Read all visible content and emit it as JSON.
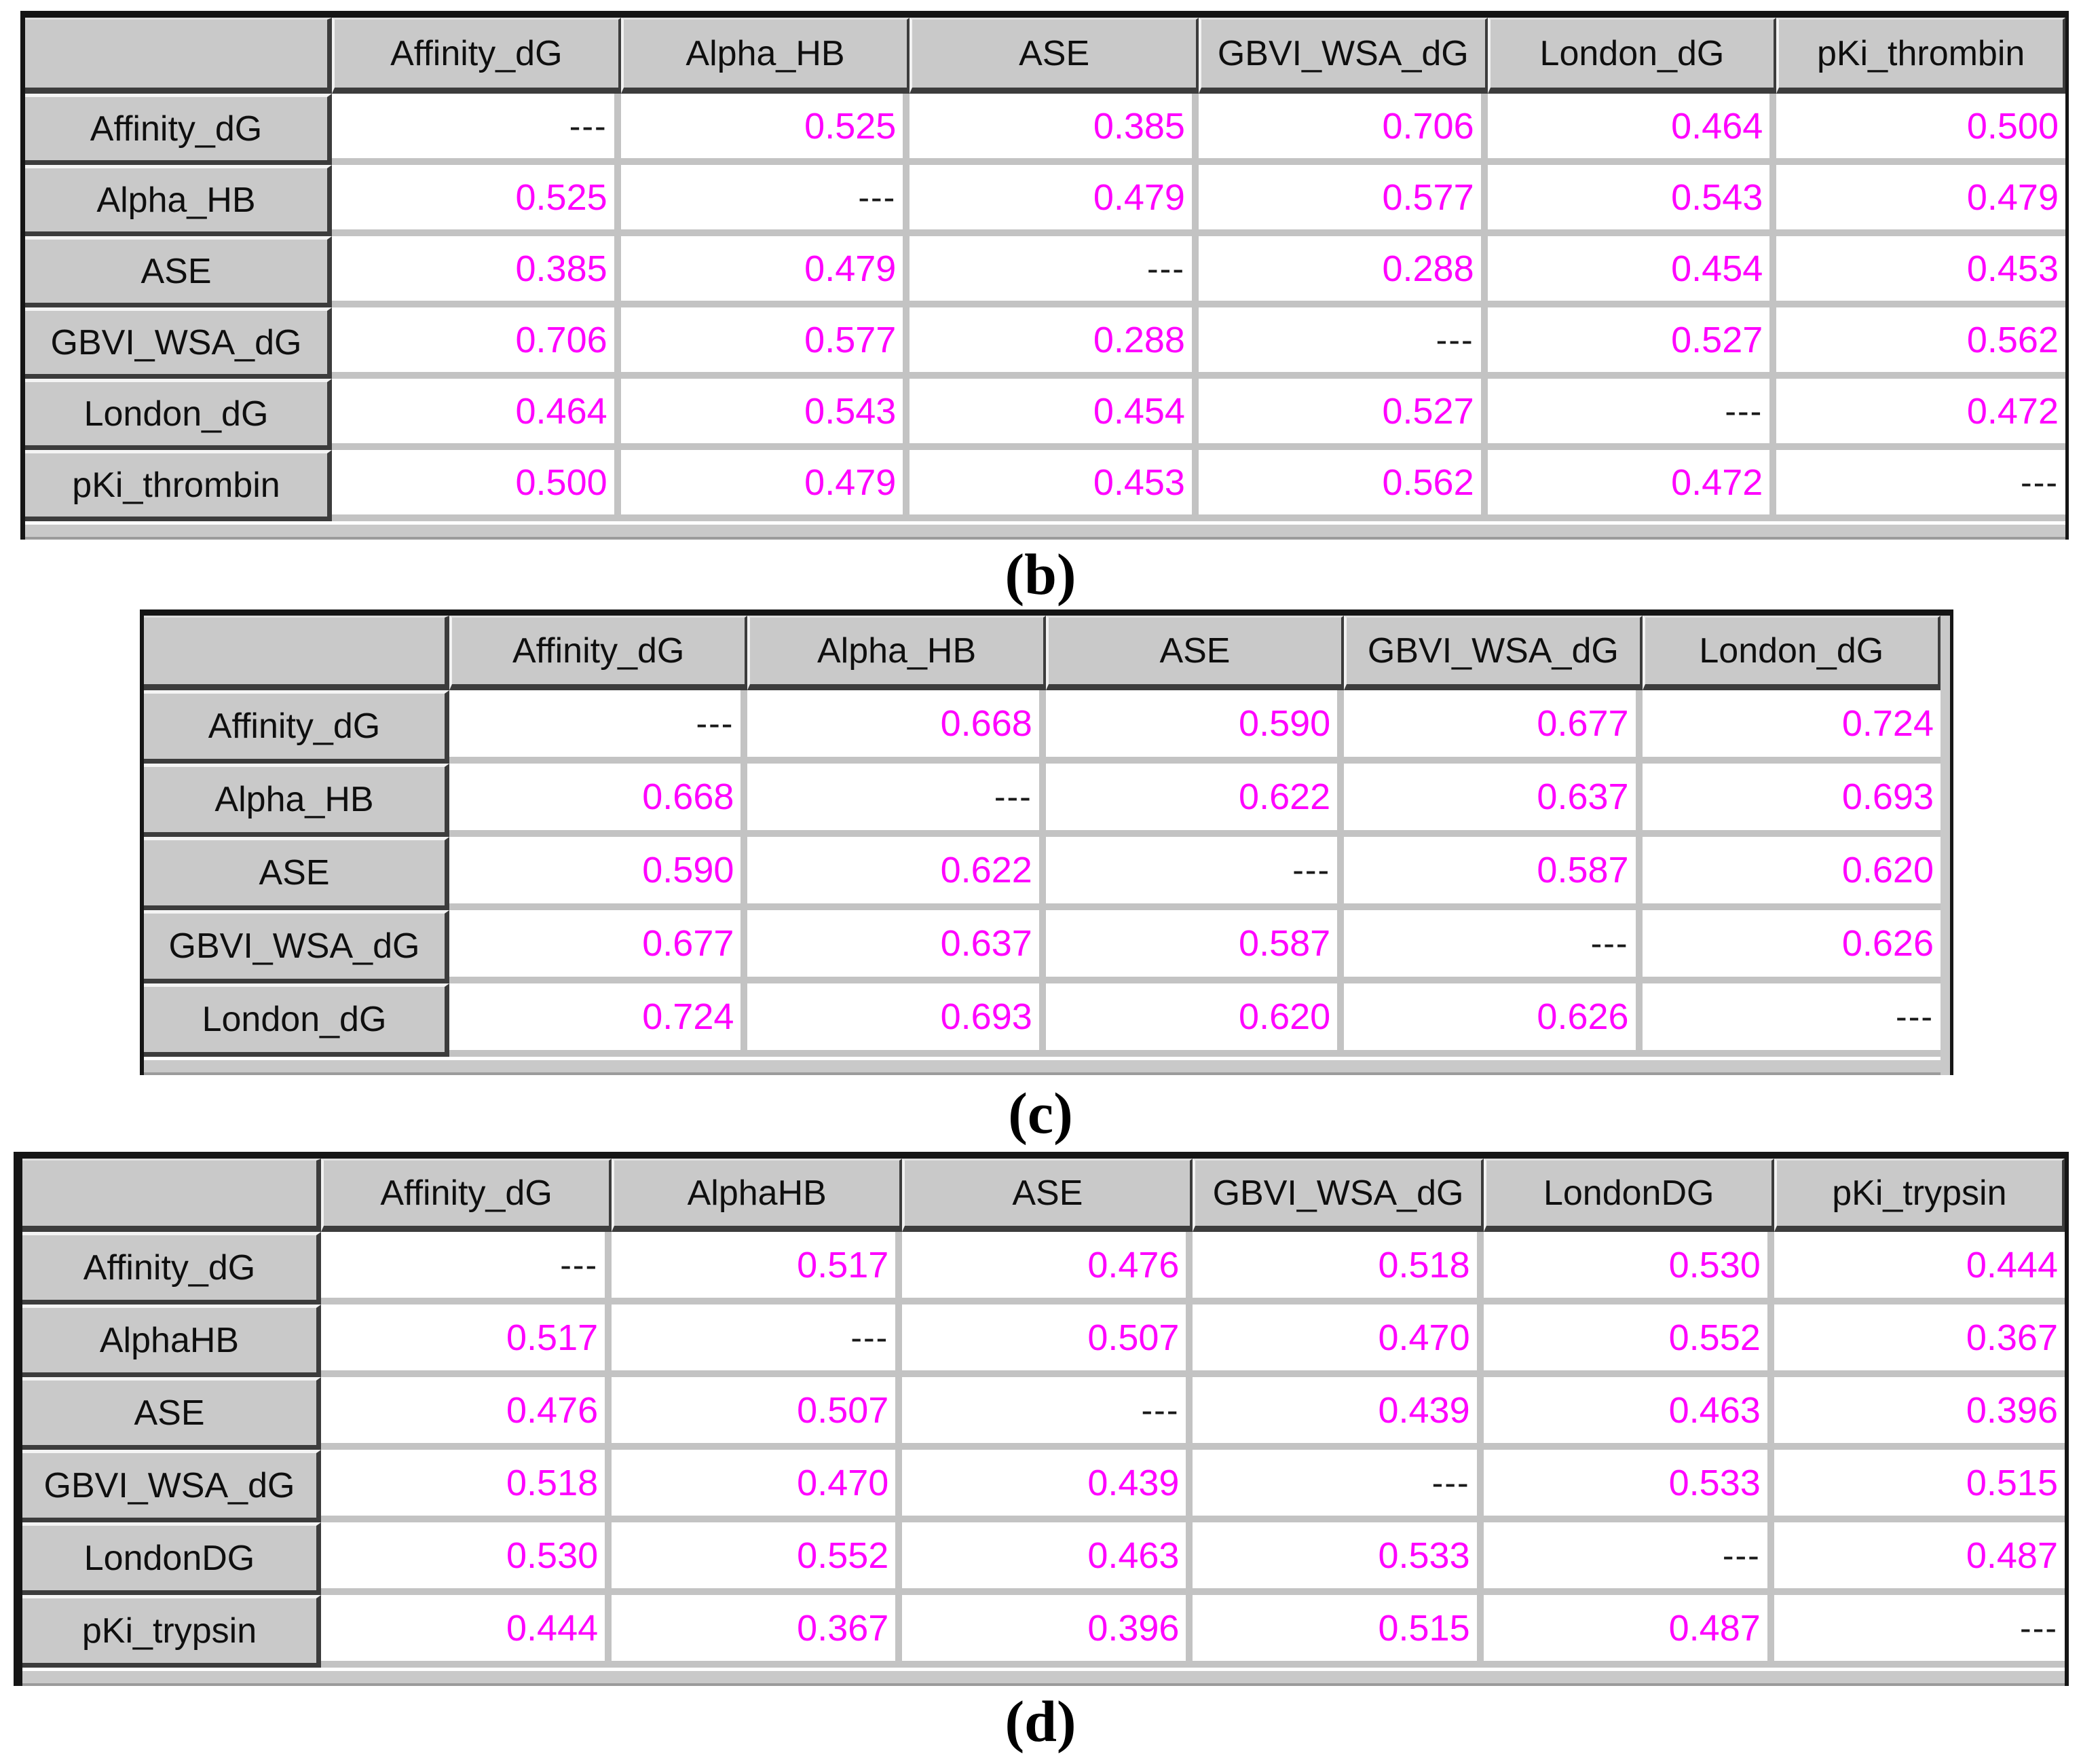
{
  "figure": {
    "colors": {
      "value_text": "#ff00ff",
      "header_background": "#c9c9c9",
      "gridline": "#c3c3c3",
      "diagonal_text": "#191919"
    },
    "tables": [
      {
        "label": "(b)",
        "columns": [
          "Affinity_dG",
          "Alpha_HB",
          "ASE",
          "GBVI_WSA_dG",
          "London_dG",
          "pKi_thrombin"
        ],
        "rows": [
          {
            "header": "Affinity_dG",
            "values": [
              "---",
              "0.525",
              "0.385",
              "0.706",
              "0.464",
              "0.500"
            ]
          },
          {
            "header": "Alpha_HB",
            "values": [
              "0.525",
              "---",
              "0.479",
              "0.577",
              "0.543",
              "0.479"
            ]
          },
          {
            "header": "ASE",
            "values": [
              "0.385",
              "0.479",
              "---",
              "0.288",
              "0.454",
              "0.453"
            ]
          },
          {
            "header": "GBVI_WSA_dG",
            "values": [
              "0.706",
              "0.577",
              "0.288",
              "---",
              "0.527",
              "0.562"
            ]
          },
          {
            "header": "London_dG",
            "values": [
              "0.464",
              "0.543",
              "0.454",
              "0.527",
              "---",
              "0.472"
            ]
          },
          {
            "header": "pKi_thrombin",
            "values": [
              "0.500",
              "0.479",
              "0.453",
              "0.562",
              "0.472",
              "---"
            ]
          }
        ]
      },
      {
        "label": "(c)",
        "columns": [
          "Affinity_dG",
          "Alpha_HB",
          "ASE",
          "GBVI_WSA_dG",
          "London_dG"
        ],
        "rows": [
          {
            "header": "Affinity_dG",
            "values": [
              "---",
              "0.668",
              "0.590",
              "0.677",
              "0.724"
            ]
          },
          {
            "header": "Alpha_HB",
            "values": [
              "0.668",
              "---",
              "0.622",
              "0.637",
              "0.693"
            ]
          },
          {
            "header": "ASE",
            "values": [
              "0.590",
              "0.622",
              "---",
              "0.587",
              "0.620"
            ]
          },
          {
            "header": "GBVI_WSA_dG",
            "values": [
              "0.677",
              "0.637",
              "0.587",
              "---",
              "0.626"
            ]
          },
          {
            "header": "London_dG",
            "values": [
              "0.724",
              "0.693",
              "0.620",
              "0.626",
              "---"
            ]
          }
        ]
      },
      {
        "label": "(d)",
        "columns": [
          "Affinity_dG",
          "AlphaHB",
          "ASE",
          "GBVI_WSA_dG",
          "LondonDG",
          "pKi_trypsin"
        ],
        "rows": [
          {
            "header": "Affinity_dG",
            "values": [
              "---",
              "0.517",
              "0.476",
              "0.518",
              "0.530",
              "0.444"
            ]
          },
          {
            "header": "AlphaHB",
            "values": [
              "0.517",
              "---",
              "0.507",
              "0.470",
              "0.552",
              "0.367"
            ]
          },
          {
            "header": "ASE",
            "values": [
              "0.476",
              "0.507",
              "---",
              "0.439",
              "0.463",
              "0.396"
            ]
          },
          {
            "header": "GBVI_WSA_dG",
            "values": [
              "0.518",
              "0.470",
              "0.439",
              "---",
              "0.533",
              "0.515"
            ]
          },
          {
            "header": "LondonDG",
            "values": [
              "0.530",
              "0.552",
              "0.463",
              "0.533",
              "---",
              "0.487"
            ]
          },
          {
            "header": "pKi_trypsin",
            "values": [
              "0.444",
              "0.367",
              "0.396",
              "0.515",
              "0.487",
              "---"
            ]
          }
        ]
      }
    ]
  }
}
